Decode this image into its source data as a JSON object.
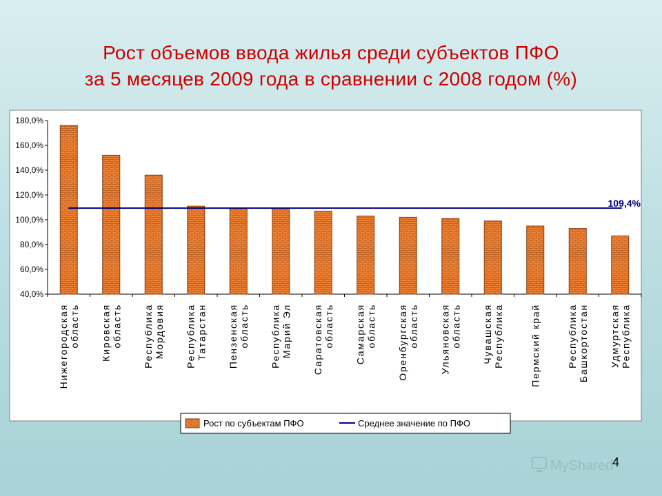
{
  "page_number": "4",
  "watermark": "MyShared",
  "colors": {
    "bar_fill": "#f08236",
    "bar_brick": "#b35c1e",
    "avg_line": "#000080",
    "title": "#cc0000"
  },
  "chart_data": {
    "type": "bar",
    "title": [
      "Рост объемов ввода жилья среди субъектов ПФО",
      "за 5 месяцев 2009 года в сравнении с 2008 годом (%)"
    ],
    "xlabel": "",
    "ylabel": "",
    "ylim": [
      40,
      180
    ],
    "ytick_step": 20,
    "ytick_labels": [
      "40,0%",
      "60,0%",
      "80,0%",
      "100,0%",
      "120,0%",
      "140,0%",
      "160,0%",
      "180,0%"
    ],
    "categories": [
      [
        "Нижегородская",
        "область"
      ],
      [
        "Кировская",
        "область"
      ],
      [
        "Республика",
        "Мордовия"
      ],
      [
        "Республика",
        "Татарстан"
      ],
      [
        "Пензенская",
        "область"
      ],
      [
        "Республика",
        "Марий Эл"
      ],
      [
        "Саратовская",
        "область"
      ],
      [
        "Самарская",
        "область"
      ],
      [
        "Оренбургская",
        "область"
      ],
      [
        "Ульяновская",
        "область"
      ],
      [
        "Чувашская",
        "Республика"
      ],
      [
        "Пермский край"
      ],
      [
        "Республика",
        "Башкортостан"
      ],
      [
        "Удмуртская",
        "Республика"
      ]
    ],
    "series": [
      {
        "name": "Рост по субъектам ПФО",
        "type": "bar",
        "values": [
          176,
          152,
          136,
          111,
          109,
          109,
          107,
          103,
          102,
          101,
          99,
          95,
          93,
          87
        ]
      },
      {
        "name": "Среднее значение по ПФО",
        "type": "line",
        "value": 109.4,
        "label": "109,4%"
      }
    ],
    "grid": false,
    "legend_position": "bottom"
  }
}
